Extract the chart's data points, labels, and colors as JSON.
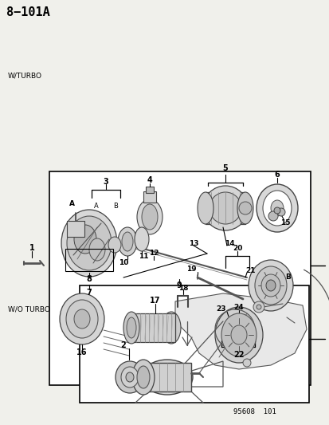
{
  "title": "8−101A",
  "bg_color": "#f0f0eb",
  "white": "#ffffff",
  "black": "#000000",
  "gray_line": "#444444",
  "light_gray": "#cccccc",
  "w_turbo": "W/TURBO",
  "wo_turbo": "W/O TURBO",
  "diagram_code": "95608  101",
  "fig_w": 4.14,
  "fig_h": 5.33,
  "dpi": 100
}
